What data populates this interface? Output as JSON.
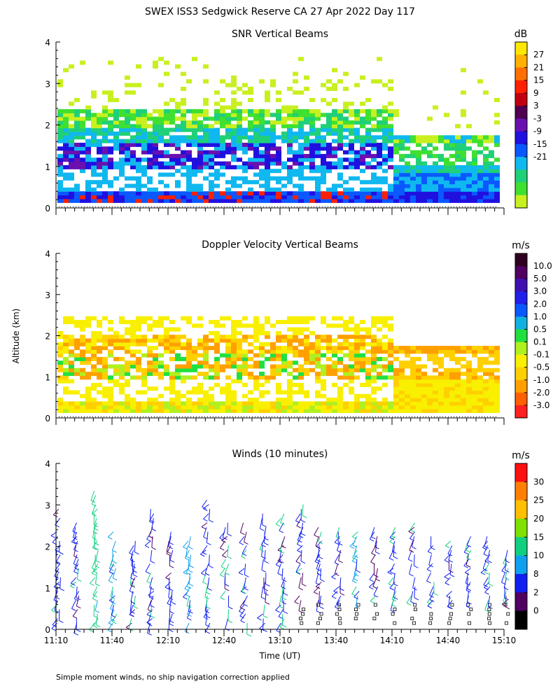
{
  "title": "SWEX ISS3 Sedgwick Reserve CA  27 Apr 2022 Day 117",
  "shared_ylabel": "Altitude (km)",
  "xlabel": "Time (UT)",
  "footnote": "Simple moment winds, no ship navigation correction applied",
  "x_ticks": [
    "11:10",
    "11:40",
    "12:10",
    "12:40",
    "13:10",
    "13:40",
    "14:10",
    "14:40",
    "15:10"
  ],
  "y_ticks": [
    "0",
    "1",
    "2",
    "3",
    "4"
  ],
  "chart_data": [
    {
      "type": "heatmap",
      "title": "SNR Vertical Beams",
      "ylim": [
        0,
        4
      ],
      "xlim": [
        "11:10",
        "15:10"
      ],
      "colorbar": {
        "unit": "dB",
        "labels": [
          "27",
          "21",
          "15",
          "9",
          "3",
          "-3",
          "-9",
          "-15",
          "-21"
        ],
        "colors": [
          "#ffe800",
          "#ffb000",
          "#ff7000",
          "#ff2000",
          "#c00010",
          "#500050",
          "#6a10b0",
          "#2010e0",
          "#0a58ff",
          "#10b8f0",
          "#20d078",
          "#40e030",
          "#c8f020"
        ]
      },
      "layers": [
        {
          "from": -21,
          "region": "full",
          "color": "#c8f020"
        },
        {
          "from": -15,
          "region": "scattered-mid",
          "color": "#40e030"
        },
        {
          "from": -9,
          "region": "0.3-2.3 km before 13:10, 0.1-1.8 km after",
          "color": "#10b8f0"
        },
        {
          "from": -3,
          "region": "lowest 0.3 km and 1.0-1.7 km before 13:10",
          "color": "#2010e0"
        },
        {
          "from": 3,
          "region": "near 1.2 km around 12:50",
          "color": "#6a10b0"
        }
      ]
    },
    {
      "type": "heatmap",
      "title": "Doppler Velocity Vertical Beams",
      "ylim": [
        0,
        4
      ],
      "xlim": [
        "11:10",
        "15:10"
      ],
      "colorbar": {
        "unit": "m/s",
        "labels": [
          "10.0",
          "5.0",
          "3.0",
          "2.0",
          "1.0",
          "0.5",
          "0.1",
          "-0.1",
          "-0.5",
          "-1.0",
          "-2.0",
          "-3.0"
        ],
        "colors": [
          "#300020",
          "#500060",
          "#4010b0",
          "#2020e8",
          "#0a58ff",
          "#10b0e0",
          "#20e040",
          "#b0f020",
          "#f8f000",
          "#ffd000",
          "#ffa000",
          "#ff6000",
          "#ff2020"
        ]
      },
      "dominant": {
        "before_13:10": "mixed -0.5 to -1.0 near 1-2 km, 0.1 to 0.5 near surface",
        "after_13:10": "-0.1 to -0.5 below 1.7 km"
      }
    },
    {
      "type": "barbs",
      "title": "Winds (10 minutes)",
      "ylim": [
        0,
        4
      ],
      "xlim": [
        "11:10",
        "15:10"
      ],
      "interval_minutes": 10,
      "colorbar": {
        "unit": "m/s",
        "labels": [
          "30",
          "25",
          "20",
          "15",
          "10",
          "8",
          "2",
          "0"
        ],
        "colors": [
          "#ff1010",
          "#ff8000",
          "#ffc000",
          "#80e000",
          "#10d080",
          "#10a0f0",
          "#1020f0",
          "#500060",
          "#000000"
        ]
      },
      "columns_minutes": [
        0,
        10,
        20,
        30,
        40,
        50,
        60,
        70,
        80,
        90,
        100,
        110,
        120,
        130,
        140,
        150,
        160,
        170,
        180,
        190,
        200,
        210,
        220,
        230,
        240
      ],
      "column_top_km": [
        3.2,
        2.6,
        3.4,
        2.4,
        2.2,
        3.0,
        2.4,
        2.3,
        3.2,
        2.6,
        2.7,
        2.8,
        2.8,
        3.1,
        2.5,
        2.6,
        2.5,
        2.5,
        2.5,
        2.6,
        2.4,
        2.2,
        2.3,
        2.4,
        2.1
      ],
      "column_speed_class": [
        6,
        6,
        4,
        5,
        6,
        6,
        6,
        5,
        6,
        6,
        6,
        6,
        6,
        6,
        6,
        6,
        5,
        6,
        6,
        6,
        6,
        6,
        6,
        6,
        6
      ]
    }
  ]
}
